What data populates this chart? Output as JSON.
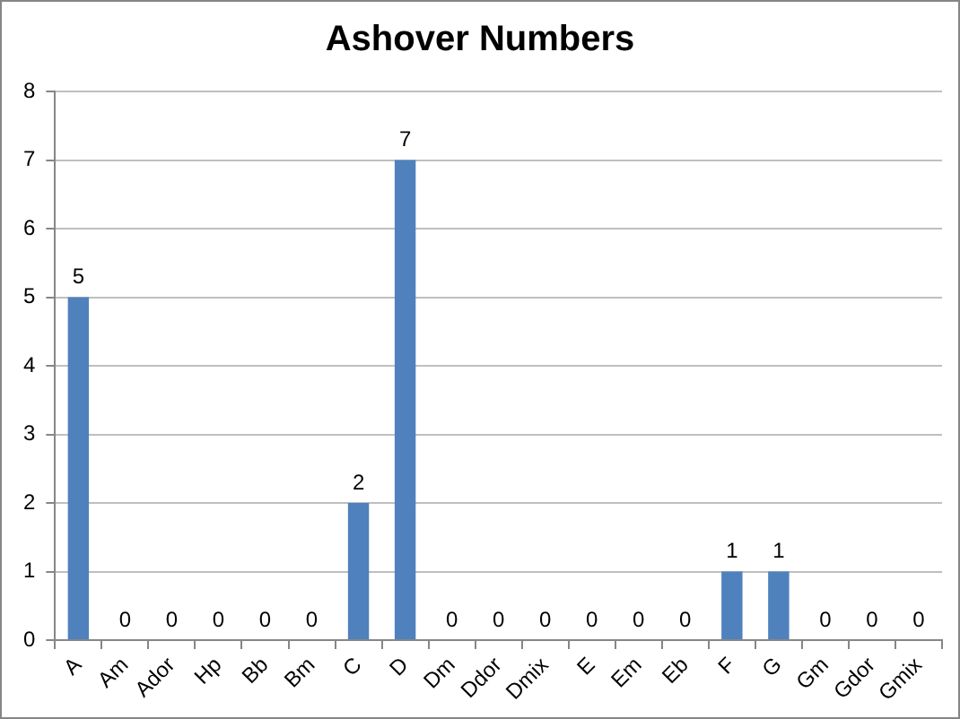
{
  "chart_data": {
    "type": "bar",
    "title": "Ashover Numbers",
    "categories": [
      "A",
      "Am",
      "Ador",
      "Hp",
      "Bb",
      "Bm",
      "C",
      "D",
      "Dm",
      "Ddor",
      "Dmix",
      "E",
      "Em",
      "Eb",
      "F",
      "G",
      "Gm",
      "Gdor",
      "Gmix"
    ],
    "values": [
      5,
      0,
      0,
      0,
      0,
      0,
      2,
      7,
      0,
      0,
      0,
      0,
      0,
      0,
      1,
      1,
      0,
      0,
      0
    ],
    "color": "#4f81bd",
    "ylim": [
      0,
      8
    ],
    "yticks": [
      0,
      1,
      2,
      3,
      4,
      5,
      6,
      7,
      8
    ],
    "grid": "y",
    "data_labels": true,
    "legend": false
  }
}
